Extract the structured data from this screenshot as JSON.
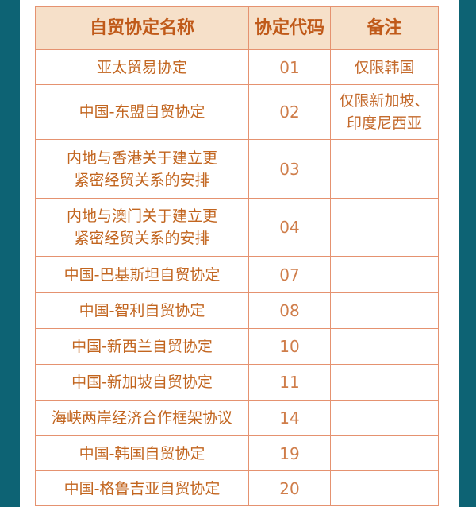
{
  "table": {
    "headers": [
      "自贸协定名称",
      "协定代码",
      "备注"
    ],
    "rows": [
      {
        "name": [
          "亚太贸易协定"
        ],
        "code": "01",
        "note": [
          "仅限韩国"
        ]
      },
      {
        "name": [
          "中国-东盟自贸协定"
        ],
        "code": "02",
        "note": [
          "仅限新加坡、",
          "印度尼西亚"
        ]
      },
      {
        "name": [
          "内地与香港关于建立更",
          "紧密经贸关系的安排"
        ],
        "code": "03",
        "note": []
      },
      {
        "name": [
          "内地与澳门关于建立更",
          "紧密经贸关系的安排"
        ],
        "code": "04",
        "note": []
      },
      {
        "name": [
          "中国-巴基斯坦自贸协定"
        ],
        "code": "07",
        "note": []
      },
      {
        "name": [
          "中国-智利自贸协定"
        ],
        "code": "08",
        "note": []
      },
      {
        "name": [
          "中国-新西兰自贸协定"
        ],
        "code": "10",
        "note": []
      },
      {
        "name": [
          "中国-新加坡自贸协定"
        ],
        "code": "11",
        "note": []
      },
      {
        "name": [
          "海峡两岸经济合作框架协议"
        ],
        "code": "14",
        "note": []
      },
      {
        "name": [
          "中国-韩国自贸协定"
        ],
        "code": "19",
        "note": []
      },
      {
        "name": [
          "中国-格鲁吉亚自贸协定"
        ],
        "code": "20",
        "note": []
      }
    ]
  },
  "colors": {
    "frame": "#0d6374",
    "header_bg": "#f6e0c9",
    "text": "#c2651f",
    "border": "#e59270"
  }
}
